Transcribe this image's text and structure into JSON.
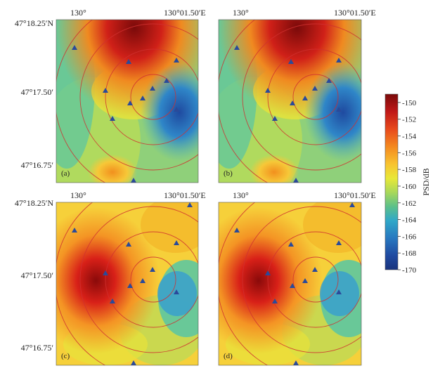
{
  "chart_data": {
    "type": "heatmap",
    "panels": [
      {
        "label": "(a)",
        "hotspot": "top-center",
        "stations_visible": true
      },
      {
        "label": "(b)",
        "hotspot": "top-center",
        "stations_visible": true
      },
      {
        "label": "(c)",
        "hotspot": "left-center",
        "stations_visible": true
      },
      {
        "label": "(d)",
        "hotspot": "left-center",
        "stations_visible": true
      }
    ],
    "x_ticks": [
      "130°",
      "130°01.50′E"
    ],
    "y_ticks": [
      "47°18.25′N",
      "47°17.50′",
      "47°16.75′"
    ],
    "colorbar": {
      "label": "PSD/dB",
      "min": -170,
      "max": -149,
      "ticks": [
        "-150",
        "-152",
        "-154",
        "-156",
        "-158",
        "-160",
        "-162",
        "-164",
        "-166",
        "-168",
        "-170"
      ],
      "colors": [
        "#7a0a0a",
        "#c01818",
        "#e84a1c",
        "#f48a20",
        "#f8c430",
        "#e8e838",
        "#a8d85a",
        "#5cc08a",
        "#30a8c8",
        "#2878c0",
        "#1f4aa0",
        "#19337d"
      ]
    }
  }
}
